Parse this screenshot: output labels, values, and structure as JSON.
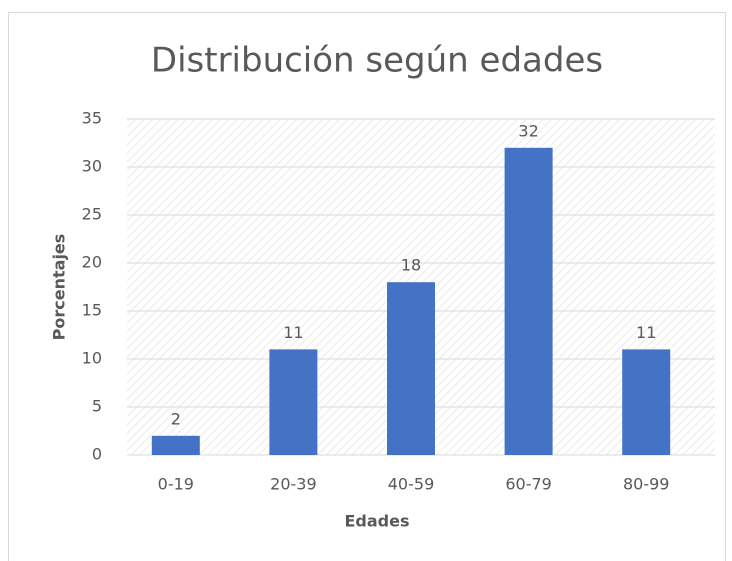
{
  "chart_data": {
    "type": "bar",
    "title": "Distribución según edades",
    "x_label": "Edades",
    "y_label": "Porcentajes",
    "categories": [
      "0-19",
      "20-39",
      "40-59",
      "60-79",
      "80-99"
    ],
    "values": [
      2,
      11,
      18,
      32,
      11
    ],
    "color": "#4472c4",
    "ylim": [
      0,
      35
    ],
    "yticks": [
      0,
      5,
      10,
      15,
      20,
      25,
      30,
      35
    ],
    "grid": true
  }
}
